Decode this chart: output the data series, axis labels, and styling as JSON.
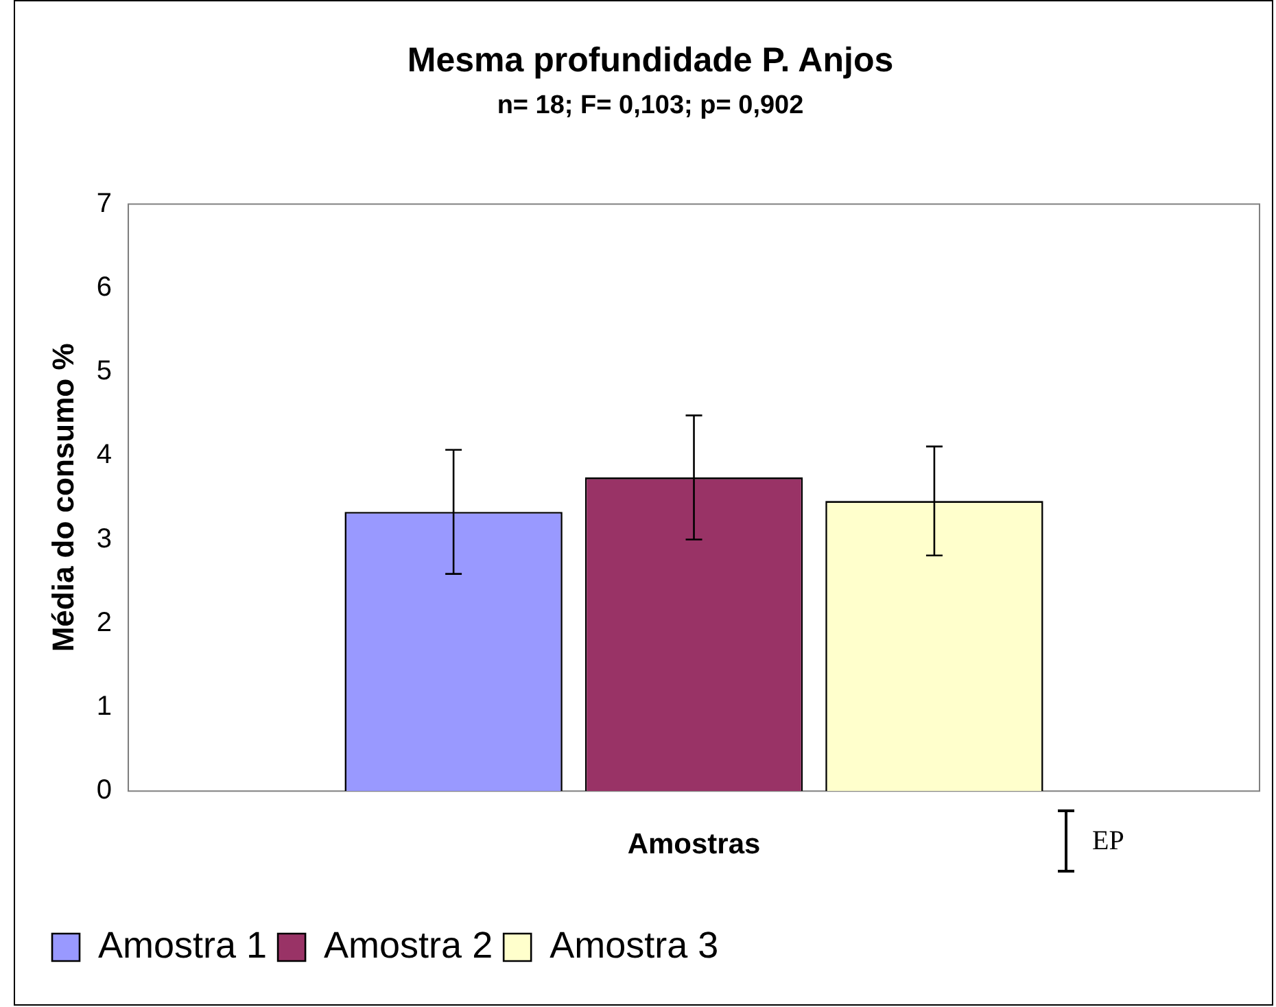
{
  "chart_data": {
    "type": "bar",
    "title": "Mesma profundidade P. Anjos",
    "subtitle": "n= 18; F= 0,103; p= 0,902",
    "xlabel": "Amostras",
    "ylabel": "Média do consumo %",
    "categories": [
      null
    ],
    "series": [
      {
        "name": "Amostra 1",
        "color": "#9999ff",
        "values": [
          3.33
        ],
        "errors": [
          0.74
        ]
      },
      {
        "name": "Amostra 2",
        "color": "#993366",
        "values": [
          3.74
        ],
        "errors": [
          0.74
        ]
      },
      {
        "name": "Amostra 3",
        "color": "#ffffcc",
        "values": [
          3.46
        ],
        "errors": [
          0.65
        ]
      }
    ],
    "ylim": [
      0,
      7
    ],
    "yticks": [
      0,
      1,
      2,
      3,
      4,
      5,
      6,
      7
    ],
    "grid": false,
    "legend": "bottom",
    "annotations": [
      "EP"
    ]
  }
}
